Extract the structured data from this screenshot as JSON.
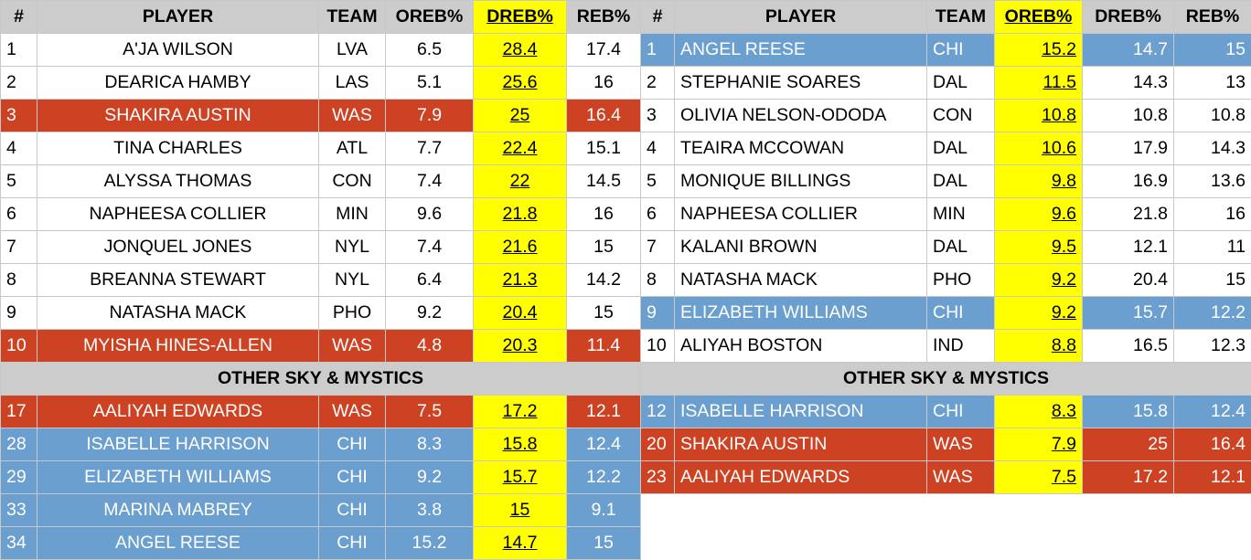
{
  "left": {
    "headers": [
      "#",
      "PLAYER",
      "TEAM",
      "OREB%",
      "DREB%",
      "REB%"
    ],
    "rows": [
      {
        "rank": "1",
        "player": "A'JA WILSON",
        "team": "LVA",
        "oreb": "6.5",
        "dreb": "28.4",
        "reb": "17.4",
        "style": "none"
      },
      {
        "rank": "2",
        "player": "DEARICA HAMBY",
        "team": "LAS",
        "oreb": "5.1",
        "dreb": "25.6",
        "reb": "16",
        "style": "none"
      },
      {
        "rank": "3",
        "player": "SHAKIRA AUSTIN",
        "team": "WAS",
        "oreb": "7.9",
        "dreb": "25",
        "reb": "16.4",
        "style": "mystics"
      },
      {
        "rank": "4",
        "player": "TINA CHARLES",
        "team": "ATL",
        "oreb": "7.7",
        "dreb": "22.4",
        "reb": "15.1",
        "style": "none"
      },
      {
        "rank": "5",
        "player": "ALYSSA THOMAS",
        "team": "CON",
        "oreb": "7.4",
        "dreb": "22",
        "reb": "14.5",
        "style": "none"
      },
      {
        "rank": "6",
        "player": "NAPHEESA COLLIER",
        "team": "MIN",
        "oreb": "9.6",
        "dreb": "21.8",
        "reb": "16",
        "style": "none"
      },
      {
        "rank": "7",
        "player": "JONQUEL JONES",
        "team": "NYL",
        "oreb": "7.4",
        "dreb": "21.6",
        "reb": "15",
        "style": "none"
      },
      {
        "rank": "8",
        "player": "BREANNA STEWART",
        "team": "NYL",
        "oreb": "6.4",
        "dreb": "21.3",
        "reb": "14.2",
        "style": "none"
      },
      {
        "rank": "9",
        "player": "NATASHA MACK",
        "team": "PHO",
        "oreb": "9.2",
        "dreb": "20.4",
        "reb": "15",
        "style": "none"
      },
      {
        "rank": "10",
        "player": "MYISHA HINES-ALLEN",
        "team": "WAS",
        "oreb": "4.8",
        "dreb": "20.3",
        "reb": "11.4",
        "style": "mystics"
      }
    ],
    "section_title": "OTHER SKY & MYSTICS",
    "other_rows": [
      {
        "rank": "17",
        "player": "AALIYAH EDWARDS",
        "team": "WAS",
        "oreb": "7.5",
        "dreb": "17.2",
        "reb": "12.1",
        "style": "mystics"
      },
      {
        "rank": "28",
        "player": "ISABELLE HARRISON",
        "team": "CHI",
        "oreb": "8.3",
        "dreb": "15.8",
        "reb": "12.4",
        "style": "sky"
      },
      {
        "rank": "29",
        "player": "ELIZABETH WILLIAMS",
        "team": "CHI",
        "oreb": "9.2",
        "dreb": "15.7",
        "reb": "12.2",
        "style": "sky"
      },
      {
        "rank": "33",
        "player": "MARINA MABREY",
        "team": "CHI",
        "oreb": "3.8",
        "dreb": "15",
        "reb": "9.1",
        "style": "sky"
      },
      {
        "rank": "34",
        "player": "ANGEL REESE",
        "team": "CHI",
        "oreb": "15.2",
        "dreb": "14.7",
        "reb": "15",
        "style": "sky"
      }
    ]
  },
  "right": {
    "headers": [
      "#",
      "PLAYER",
      "TEAM",
      "OREB%",
      "DREB%",
      "REB%"
    ],
    "rows": [
      {
        "rank": "1",
        "player": "ANGEL REESE",
        "team": "CHI",
        "oreb": "15.2",
        "dreb": "14.7",
        "reb": "15",
        "style": "sky"
      },
      {
        "rank": "2",
        "player": "STEPHANIE SOARES",
        "team": "DAL",
        "oreb": "11.5",
        "dreb": "14.3",
        "reb": "13",
        "style": "none"
      },
      {
        "rank": "3",
        "player": "OLIVIA NELSON-ODODA",
        "team": "CON",
        "oreb": "10.8",
        "dreb": "10.8",
        "reb": "10.8",
        "style": "none"
      },
      {
        "rank": "4",
        "player": "TEAIRA MCCOWAN",
        "team": "DAL",
        "oreb": "10.6",
        "dreb": "17.9",
        "reb": "14.3",
        "style": "none"
      },
      {
        "rank": "5",
        "player": "MONIQUE BILLINGS",
        "team": "DAL",
        "oreb": "9.8",
        "dreb": "16.9",
        "reb": "13.6",
        "style": "none"
      },
      {
        "rank": "6",
        "player": "NAPHEESA COLLIER",
        "team": "MIN",
        "oreb": "9.6",
        "dreb": "21.8",
        "reb": "16",
        "style": "none"
      },
      {
        "rank": "7",
        "player": "KALANI BROWN",
        "team": "DAL",
        "oreb": "9.5",
        "dreb": "12.1",
        "reb": "11",
        "style": "none"
      },
      {
        "rank": "8",
        "player": "NATASHA MACK",
        "team": "PHO",
        "oreb": "9.2",
        "dreb": "20.4",
        "reb": "15",
        "style": "none"
      },
      {
        "rank": "9",
        "player": "ELIZABETH WILLIAMS",
        "team": "CHI",
        "oreb": "9.2",
        "dreb": "15.7",
        "reb": "12.2",
        "style": "sky"
      },
      {
        "rank": "10",
        "player": "ALIYAH BOSTON",
        "team": "IND",
        "oreb": "8.8",
        "dreb": "16.5",
        "reb": "12.3",
        "style": "none"
      }
    ],
    "section_title": "OTHER SKY & MYSTICS",
    "other_rows": [
      {
        "rank": "12",
        "player": "ISABELLE HARRISON",
        "team": "CHI",
        "oreb": "8.3",
        "dreb": "15.8",
        "reb": "12.4",
        "style": "sky"
      },
      {
        "rank": "20",
        "player": "SHAKIRA AUSTIN",
        "team": "WAS",
        "oreb": "7.9",
        "dreb": "25",
        "reb": "16.4",
        "style": "mystics"
      },
      {
        "rank": "23",
        "player": "AALIYAH EDWARDS",
        "team": "WAS",
        "oreb": "7.5",
        "dreb": "17.2",
        "reb": "12.1",
        "style": "mystics"
      }
    ]
  },
  "colors": {
    "header_gray": "#cccccc",
    "highlight_yellow": "#ffff00",
    "sky_blue": "#6a9fcf",
    "mystics_red": "#cc4223"
  }
}
